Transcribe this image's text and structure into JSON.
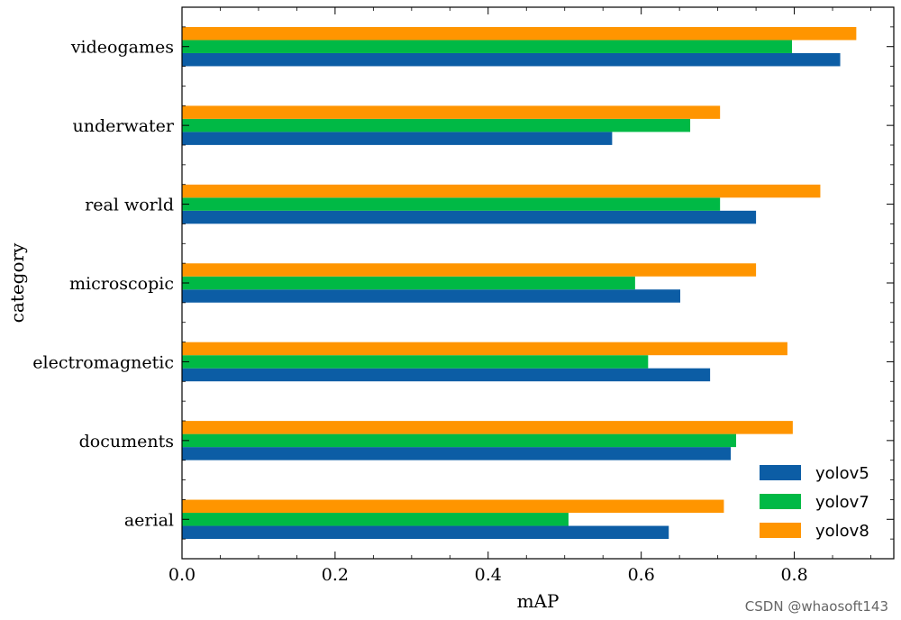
{
  "chart_data": {
    "type": "bar",
    "orientation": "horizontal",
    "title": "",
    "xlabel": "mAP",
    "ylabel": "category",
    "xlim": [
      0,
      0.93
    ],
    "xticks": [
      "0.0",
      "0.2",
      "0.4",
      "0.6",
      "0.8"
    ],
    "xtick_values": [
      0.0,
      0.2,
      0.4,
      0.6,
      0.8
    ],
    "categories": [
      "aerial",
      "documents",
      "electromagnetic",
      "microscopic",
      "real world",
      "underwater",
      "videogames"
    ],
    "series": [
      {
        "name": "yolov5",
        "color": "#0c5da5",
        "values": [
          0.636,
          0.717,
          0.69,
          0.651,
          0.75,
          0.562,
          0.86
        ]
      },
      {
        "name": "yolov7",
        "color": "#00b945",
        "values": [
          0.505,
          0.724,
          0.609,
          0.592,
          0.703,
          0.664,
          0.797
        ]
      },
      {
        "name": "yolov8",
        "color": "#ff9500",
        "values": [
          0.708,
          0.798,
          0.791,
          0.75,
          0.834,
          0.703,
          0.881
        ]
      }
    ],
    "legend_position": "bottom-right",
    "grid": false
  },
  "watermark": "CSDN @whaosoft143"
}
